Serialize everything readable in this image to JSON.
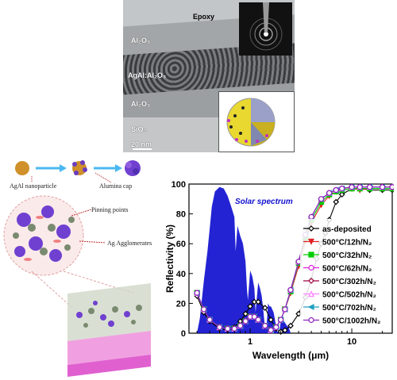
{
  "tem": {
    "labels": {
      "epoxy": "Epoxy",
      "al2o3_top": "Al₂O₃",
      "agal": "AgAl:Al₂O₃",
      "al2o3_bottom": "Al₂O₃",
      "sio2": "SiO₂",
      "scale": "20 nm"
    }
  },
  "schematic": {
    "top_labels": {
      "nanoparticle": "AgAl nanoparticle",
      "cap": "Alumina cap"
    },
    "callouts": {
      "pinning": "Pinning points",
      "agglomerates": "Ag Agglomerates"
    }
  },
  "chart_data": {
    "type": "line",
    "x_scale": "log",
    "xlabel": "Wavelength (μm)",
    "ylabel": "Reflectivity (%)",
    "xlim": [
      0.25,
      25
    ],
    "ylim": [
      0,
      100
    ],
    "yticks": [
      "0",
      "20",
      "40",
      "60",
      "80",
      "100"
    ],
    "xticks": [
      "1",
      "10"
    ],
    "annotation": "Solar spectrum",
    "solar_spectrum_color": "#1010d0",
    "series": [
      {
        "name": "as-deposited",
        "color": "#000000",
        "marker": "diamond-open",
        "x": [
          0.3,
          0.35,
          0.4,
          0.5,
          0.6,
          0.7,
          0.8,
          0.9,
          1.0,
          1.1,
          1.2,
          1.4,
          1.6,
          1.8,
          2.0,
          2.2,
          2.5,
          3,
          3.5,
          4,
          4.5,
          5,
          5.5,
          6,
          7,
          8,
          10,
          12,
          15,
          20,
          25
        ],
        "y": [
          25,
          14,
          8,
          3,
          2,
          4,
          8,
          13,
          18,
          21,
          21,
          17,
          9,
          3,
          1,
          2,
          5,
          13,
          24,
          36,
          50,
          60,
          67,
          76,
          88,
          93,
          97,
          97,
          96,
          96,
          96
        ]
      },
      {
        "name": "500°C/12h/N₂",
        "color": "#e02020",
        "marker": "triangle-down",
        "x": [
          0.3,
          0.35,
          0.4,
          0.5,
          0.6,
          0.7,
          0.8,
          0.9,
          1.0,
          1.1,
          1.2,
          1.4,
          1.6,
          1.8,
          2.0,
          2.2,
          2.5,
          3,
          3.5,
          4,
          5,
          6,
          7,
          8,
          10,
          12,
          15,
          20,
          25
        ],
        "y": [
          27,
          16,
          9,
          4,
          3,
          3,
          5,
          8,
          11,
          11,
          9,
          5,
          2,
          4,
          9,
          16,
          27,
          45,
          62,
          74,
          86,
          92,
          95,
          96,
          97,
          96,
          97,
          97,
          97
        ]
      },
      {
        "name": "500°C/32h/N₂",
        "color": "#00cc00",
        "marker": "square",
        "x": [
          0.3,
          0.35,
          0.4,
          0.5,
          0.6,
          0.7,
          0.8,
          0.9,
          1.0,
          1.1,
          1.2,
          1.4,
          1.6,
          1.8,
          2.0,
          2.2,
          2.5,
          3,
          3.5,
          4,
          5,
          6,
          7,
          8,
          10,
          12,
          15,
          20,
          25
        ],
        "y": [
          27,
          16,
          9,
          4,
          3,
          3,
          5,
          8,
          11,
          11,
          9,
          5,
          2,
          4,
          9,
          16,
          28,
          47,
          64,
          76,
          88,
          93,
          95,
          96,
          97,
          97,
          97,
          97,
          97
        ]
      },
      {
        "name": "500°C/62h/N₂",
        "color": "#e020e0",
        "marker": "circle-open",
        "x": [
          0.3,
          0.35,
          0.4,
          0.5,
          0.6,
          0.7,
          0.8,
          0.9,
          1.0,
          1.1,
          1.2,
          1.4,
          1.6,
          1.8,
          2.0,
          2.2,
          2.5,
          3,
          3.5,
          4,
          5,
          6,
          7,
          8,
          10,
          12,
          15,
          20,
          25
        ],
        "y": [
          27,
          16,
          9,
          4,
          3,
          3,
          5,
          8,
          11,
          11,
          9,
          5,
          2,
          4,
          9,
          16,
          29,
          48,
          66,
          78,
          90,
          94,
          96,
          97,
          98,
          98,
          98,
          98,
          98
        ]
      },
      {
        "name": "500°C/302h/N₂",
        "color": "#a00040",
        "marker": "diamond-open",
        "x": [
          0.3,
          0.35,
          0.4,
          0.5,
          0.6,
          0.7,
          0.8,
          0.9,
          1.0,
          1.1,
          1.2,
          1.4,
          1.6,
          1.8,
          2.0,
          2.2,
          2.5,
          3,
          3.5,
          4,
          5,
          6,
          7,
          8,
          10,
          12,
          15,
          20,
          25
        ],
        "y": [
          27,
          16,
          9,
          4,
          3,
          3,
          5,
          8,
          11,
          11,
          9,
          5,
          2,
          4,
          9,
          16,
          29,
          48,
          66,
          78,
          90,
          94,
          96,
          97,
          98,
          98,
          98,
          98,
          98
        ]
      },
      {
        "name": "500°C/502h/N₂",
        "color": "#ff80ff",
        "marker": "triangle-open",
        "x": [
          0.3,
          0.35,
          0.4,
          0.5,
          0.6,
          0.7,
          0.8,
          0.9,
          1.0,
          1.1,
          1.2,
          1.4,
          1.6,
          1.8,
          2.0,
          2.2,
          2.5,
          3,
          3.5,
          4,
          5,
          6,
          7,
          8,
          10,
          12,
          15,
          20,
          25
        ],
        "y": [
          27,
          16,
          9,
          4,
          3,
          3,
          5,
          8,
          11,
          11,
          9,
          5,
          2,
          4,
          9,
          16,
          29,
          48,
          66,
          78,
          90,
          94,
          96,
          97,
          98,
          98,
          98,
          98,
          98
        ]
      },
      {
        "name": "500°C/702h/N₂",
        "color": "#20a0c0",
        "marker": "triangle-left",
        "x": [
          0.3,
          0.35,
          0.4,
          0.5,
          0.6,
          0.7,
          0.8,
          0.9,
          1.0,
          1.1,
          1.2,
          1.4,
          1.6,
          1.8,
          2.0,
          2.2,
          2.5,
          3,
          3.5,
          4,
          5,
          6,
          7,
          8,
          10,
          12,
          15,
          20,
          25
        ],
        "y": [
          27,
          16,
          9,
          4,
          3,
          3,
          5,
          8,
          11,
          11,
          9,
          5,
          2,
          4,
          9,
          16,
          29,
          48,
          66,
          78,
          90,
          94,
          96,
          97,
          98,
          98,
          98,
          98,
          98
        ]
      },
      {
        "name": "500°C/1002h/N₂",
        "color": "#9020c0",
        "marker": "circle-open",
        "x": [
          0.3,
          0.35,
          0.4,
          0.5,
          0.6,
          0.7,
          0.8,
          0.9,
          1.0,
          1.1,
          1.2,
          1.4,
          1.6,
          1.8,
          2.0,
          2.2,
          2.5,
          3,
          3.5,
          4,
          5,
          6,
          7,
          8,
          10,
          12,
          15,
          20,
          25
        ],
        "y": [
          27,
          16,
          9,
          4,
          3,
          3,
          5,
          8,
          11,
          11,
          9,
          5,
          2,
          4,
          9,
          16,
          29,
          48,
          66,
          78,
          90,
          94,
          96,
          97,
          98,
          98,
          98,
          98,
          98
        ]
      }
    ],
    "solar": {
      "x": [
        0.3,
        0.32,
        0.35,
        0.38,
        0.4,
        0.42,
        0.45,
        0.5,
        0.55,
        0.6,
        0.65,
        0.7,
        0.72,
        0.75,
        0.8,
        0.85,
        0.9,
        0.93,
        0.95,
        1.0,
        1.05,
        1.1,
        1.13,
        1.15,
        1.2,
        1.25,
        1.3,
        1.35,
        1.4,
        1.45,
        1.5,
        1.55,
        1.6,
        1.7,
        1.8,
        1.85,
        1.95,
        2.0,
        2.1,
        2.2,
        2.3,
        2.4,
        2.5
      ],
      "y": [
        0,
        10,
        35,
        55,
        70,
        85,
        95,
        98,
        97,
        92,
        85,
        78,
        55,
        72,
        65,
        60,
        48,
        30,
        22,
        42,
        38,
        30,
        14,
        20,
        34,
        30,
        25,
        15,
        3,
        4,
        20,
        18,
        18,
        14,
        5,
        1,
        2,
        8,
        9,
        7,
        5,
        4,
        0
      ]
    }
  }
}
